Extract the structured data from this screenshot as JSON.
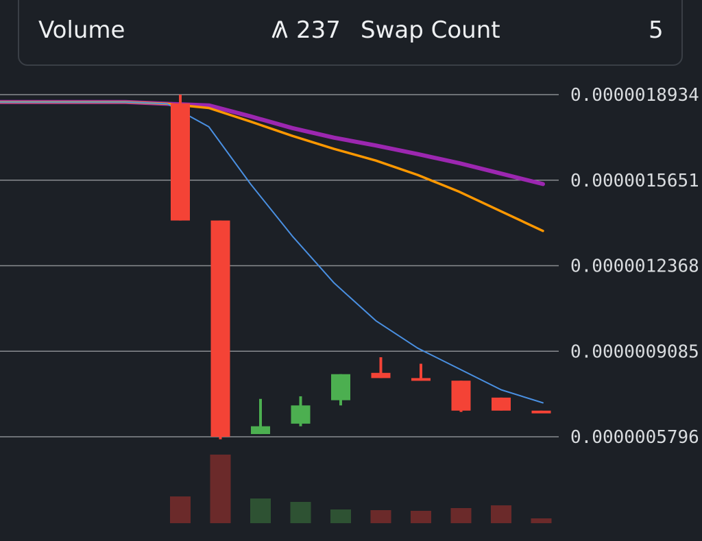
{
  "stats": {
    "volume_label": "Volume",
    "volume_icon": "arbitrum-icon",
    "volume_value": "237",
    "swap_count_label": "Swap Count",
    "swap_count_value": "5"
  },
  "chart_data": {
    "type": "candlestick",
    "y_ticks": [
      "0.0000018934",
      "0.0000015651",
      "0.0000012368",
      "0.0000009085",
      "0.0000005796"
    ],
    "ylim": [
      5.796e-07,
      1.8934e-06
    ],
    "candles": [
      {
        "open": 1.86e-06,
        "close": 1.41e-06,
        "high": 1.8934e-06,
        "low": 1.41e-06,
        "direction": "down"
      },
      {
        "open": 1.41e-06,
        "close": 5.796e-07,
        "high": 1.41e-06,
        "low": 5.7e-07,
        "direction": "down"
      },
      {
        "open": 5.9e-07,
        "close": 6.2e-07,
        "high": 7.25e-07,
        "low": 5.9e-07,
        "direction": "up"
      },
      {
        "open": 6.3e-07,
        "close": 7e-07,
        "high": 7.35e-07,
        "low": 6.2e-07,
        "direction": "up"
      },
      {
        "open": 7.2e-07,
        "close": 8.2e-07,
        "high": 8.2e-07,
        "low": 7e-07,
        "direction": "up"
      },
      {
        "open": 8.25e-07,
        "close": 8.05e-07,
        "high": 8.85e-07,
        "low": 8.05e-07,
        "direction": "down"
      },
      {
        "open": 8.05e-07,
        "close": 7.95e-07,
        "high": 8.6e-07,
        "low": 7.95e-07,
        "direction": "down"
      },
      {
        "open": 7.95e-07,
        "close": 6.8e-07,
        "high": 7.95e-07,
        "low": 6.75e-07,
        "direction": "down"
      },
      {
        "open": 7.3e-07,
        "close": 6.8e-07,
        "high": 7.3e-07,
        "low": 6.8e-07,
        "direction": "down"
      },
      {
        "open": 6.8e-07,
        "close": 6.75e-07,
        "high": 6.8e-07,
        "low": 6.75e-07,
        "direction": "down"
      }
    ],
    "volume_bars": [
      {
        "value": 39,
        "direction": "down"
      },
      {
        "value": 100,
        "direction": "down"
      },
      {
        "value": 36,
        "direction": "up"
      },
      {
        "value": 31,
        "direction": "up"
      },
      {
        "value": 20,
        "direction": "up"
      },
      {
        "value": 19,
        "direction": "down"
      },
      {
        "value": 18,
        "direction": "down"
      },
      {
        "value": 22,
        "direction": "down"
      },
      {
        "value": 26,
        "direction": "down"
      },
      {
        "value": 7,
        "direction": "down"
      }
    ],
    "ma_lines": [
      {
        "color": "#9c27b0",
        "values": [
          1.865e-06,
          1.865e-06,
          1.865e-06,
          1.865e-06,
          1.858e-06,
          1.852e-06,
          1.81e-06,
          1.765e-06,
          1.728e-06,
          1.698e-06,
          1.665e-06,
          1.63e-06,
          1.59e-06,
          1.55e-06
        ]
      },
      {
        "color": "#ff9800",
        "values": [
          1.865e-06,
          1.865e-06,
          1.865e-06,
          1.865e-06,
          1.858e-06,
          1.842e-06,
          1.79e-06,
          1.735e-06,
          1.685e-06,
          1.64e-06,
          1.585e-06,
          1.52e-06,
          1.445e-06,
          1.37e-06
        ]
      },
      {
        "color": "#4a90e2",
        "values": [
          1.865e-06,
          1.865e-06,
          1.865e-06,
          1.865e-06,
          1.858e-06,
          1.77e-06,
          1.55e-06,
          1.35e-06,
          1.17e-06,
          1.025e-06,
          9.2e-07,
          8.4e-07,
          7.6e-07,
          7.1e-07
        ]
      }
    ],
    "colors": {
      "up": "#4caf50",
      "down": "#f44336",
      "up_volume": "#2e5233",
      "down_volume": "#6b2a2a",
      "grid": "#8a8d91"
    }
  }
}
